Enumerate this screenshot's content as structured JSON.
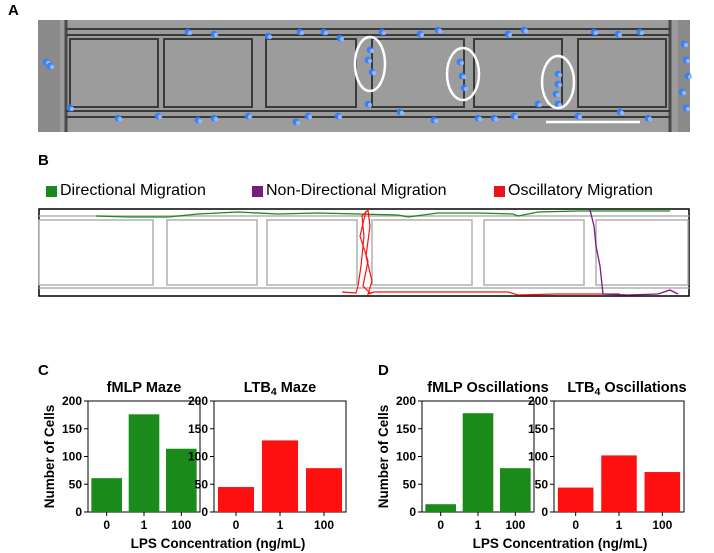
{
  "panel_labels": {
    "a": "A",
    "b": "B",
    "c": "C",
    "d": "D"
  },
  "legend": [
    {
      "label": "Directional Migration",
      "color": "#1a8a1a"
    },
    {
      "label": "Non-Directional Migration",
      "color": "#7a1a7a"
    },
    {
      "label": "Oscillatory Migration",
      "color": "#e8141a"
    }
  ],
  "colors": {
    "green": "#1a8a1a",
    "red": "#ff1010",
    "purple": "#7a1a7a",
    "chamber": "#b0b0b0",
    "cell": "#2f7fff"
  },
  "shared_labels": {
    "ylabel": "Number of Cells",
    "xlabel": "LPS Concentration (ng/mL)"
  },
  "chart_data": [
    {
      "type": "bar",
      "title": "fMLP Maze",
      "categories": [
        "0",
        "1",
        "100"
      ],
      "values": [
        61,
        176,
        114
      ],
      "ylim": [
        0,
        200
      ],
      "yticks": [
        0,
        50,
        100,
        150,
        200
      ],
      "color": "#1a8a1a"
    },
    {
      "type": "bar",
      "title": "LTB4 Maze",
      "categories": [
        "0",
        "1",
        "100"
      ],
      "values": [
        45,
        129,
        79
      ],
      "ylim": [
        0,
        200
      ],
      "yticks": [
        0,
        50,
        100,
        150,
        200
      ],
      "color": "#ff1010"
    },
    {
      "type": "bar",
      "title": "fMLP Oscillations",
      "categories": [
        "0",
        "1",
        "100"
      ],
      "values": [
        14,
        178,
        79
      ],
      "ylim": [
        0,
        200
      ],
      "yticks": [
        0,
        50,
        100,
        150,
        200
      ],
      "color": "#1a8a1a"
    },
    {
      "type": "bar",
      "title": "LTB4 Oscillations",
      "categories": [
        "0",
        "1",
        "100"
      ],
      "values": [
        44,
        102,
        72
      ],
      "ylim": [
        0,
        200
      ],
      "yticks": [
        0,
        50,
        100,
        150,
        200
      ],
      "color": "#ff1010"
    }
  ]
}
